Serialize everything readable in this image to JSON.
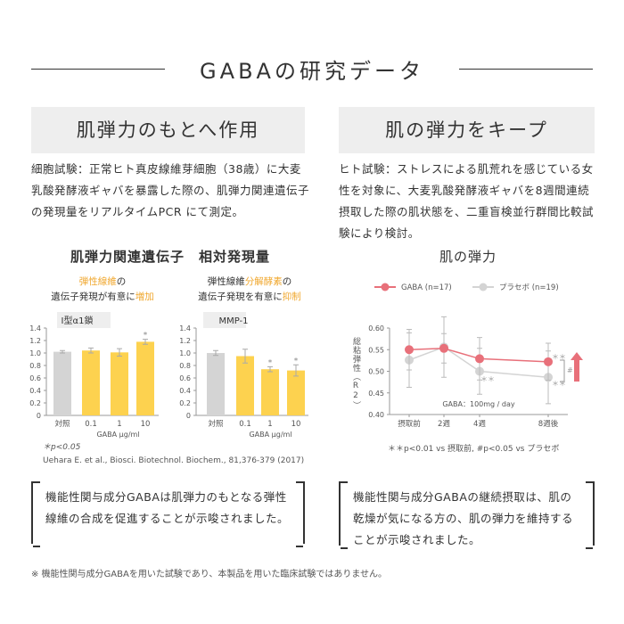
{
  "title": "GABAの研究データ",
  "left": {
    "heading": "肌弾力のもとへ作用",
    "paragraph": "細胞試験：正常ヒト真皮線維芽細胞（38歳）に大麦乳酸発酵液ギャバを暴露した際の、肌弾力関連遺伝子の発現量をリアルタイムPCR にて測定。",
    "chart_title": "肌弾力関連遺伝子　相対発現量",
    "sub1": {
      "a": "弾性線維",
      "b": "の",
      "c": "遺伝子発現が有意に",
      "d": "増加"
    },
    "sub2": {
      "a": "弾性線維",
      "b": "分解酵素",
      "c": "の",
      "d": "遺伝子発現を有意に",
      "e": "抑制"
    },
    "pnote": "＊p<0.05",
    "citation": "Uehara E. et al., Biosci. Biotechnol. Biochem., 81,376-379 (2017)",
    "conclusion": "機能性関与成分GABAは肌弾力のもとなる弾性線維の合成を促進することが示唆されました。"
  },
  "right": {
    "heading": "肌の弾力をキープ",
    "paragraph": "ヒト試験：ストレスによる肌荒れを感じている女性を対象に、大麦乳酸発酵液ギャバを8週間連続摂取した際の肌状態を、二重盲検並行群間比較試験により検討。",
    "chart_title": "肌の弾力",
    "note": "＊＊p<0.01 vs 摂取前, #p<0.05 vs プラセボ",
    "conclusion": "機能性関与成分GABAの継続摂取は、肌の乾燥が気になる方の、肌の弾力を維持することが示唆されました。"
  },
  "footnote": "※ 機能性関与成分GABAを用いた試験であり、本製品を用いた臨床試験ではありません。",
  "colors": {
    "yellow": "#fdd24f",
    "gray": "#d4d4d4",
    "red": "#e8707a",
    "orange": "#f0a830"
  },
  "chart_data": [
    {
      "type": "bar",
      "title": "Ⅰ型α1鎖",
      "categories": [
        "対照",
        "0.1",
        "1",
        "10"
      ],
      "values": [
        1.02,
        1.04,
        1.01,
        1.18
      ],
      "errors": [
        0.02,
        0.04,
        0.06,
        0.04
      ],
      "significant": [
        false,
        false,
        false,
        true
      ],
      "xlabel": "GABA μg/ml",
      "ylim": [
        0,
        1.4
      ],
      "yticks": [
        "0",
        "0.2",
        "0.4",
        "0.6",
        "0.8",
        "1.0",
        "1.2",
        "1.4"
      ]
    },
    {
      "type": "bar",
      "title": "MMP-1",
      "categories": [
        "対照",
        "0.1",
        "1",
        "10"
      ],
      "values": [
        1.0,
        0.95,
        0.74,
        0.72
      ],
      "errors": [
        0.04,
        0.11,
        0.04,
        0.09
      ],
      "significant": [
        false,
        false,
        true,
        true
      ],
      "xlabel": "GABA μg/ml",
      "ylim": [
        0,
        1.4
      ],
      "yticks": [
        "0",
        "0.2",
        "0.4",
        "0.6",
        "0.8",
        "1.0",
        "1.2",
        "1.4"
      ]
    },
    {
      "type": "line",
      "categories": [
        "摂取前",
        "2週",
        "4週",
        "8週後"
      ],
      "x": [
        0,
        2,
        4,
        8
      ],
      "ylabel": "総粘弾性（R2）",
      "ylim": [
        0.4,
        0.6
      ],
      "yticks": [
        "0.40",
        "0.45",
        "0.50",
        "0.55",
        "0.60"
      ],
      "annotation": "GABA：100mg / day",
      "series": [
        {
          "name": "GABA (n=17)",
          "values": [
            0.55,
            0.553,
            0.529,
            0.522
          ],
          "errors": [
            0.047,
            0.034,
            0.049,
            0.043
          ]
        },
        {
          "name": "プラセボ (n=19)",
          "values": [
            0.526,
            0.556,
            0.5,
            0.486
          ],
          "errors": [
            0.063,
            0.07,
            0.053,
            0.061
          ]
        }
      ],
      "marks": {
        "sig": "＊＊",
        "hash": "#"
      }
    }
  ]
}
